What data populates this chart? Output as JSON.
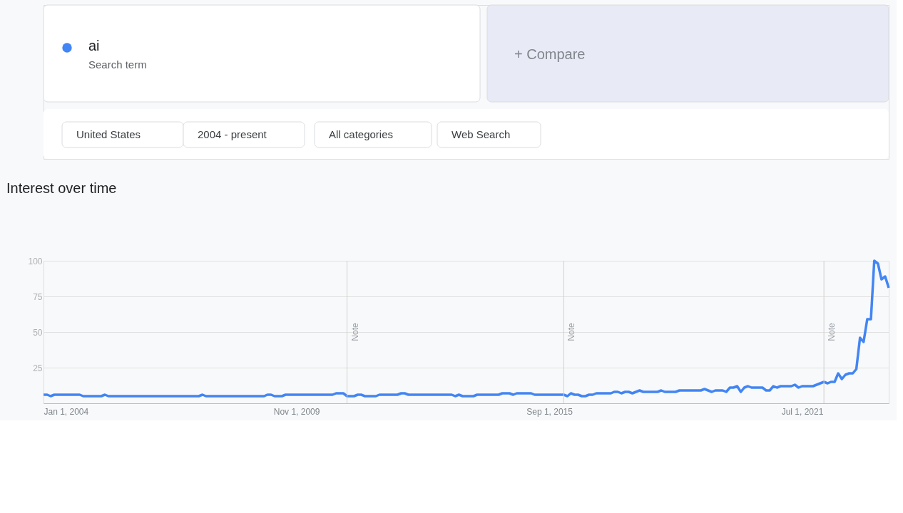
{
  "chart_data": {
    "type": "line",
    "title": "Interest over time",
    "annotations": [
      "Search term",
      "+ Compare",
      "United States",
      "2004 - present",
      "All categories",
      "Web Search"
    ],
    "legend": "top left",
    "series": [
      {
        "name": "ai",
        "color": "#4285f4",
        "x": [
          "2004-01",
          "2004-02",
          "2004-03",
          "2004-04",
          "2004-11",
          "2004-12",
          "2005-05",
          "2005-06",
          "2005-07",
          "2007-08",
          "2007-09",
          "2007-10",
          "2009-02",
          "2009-03",
          "2009-04",
          "2009-05",
          "2009-07",
          "2009-08",
          "2010-09",
          "2010-10",
          "2010-12",
          "2011-01",
          "2011-03",
          "2011-04",
          "2011-05",
          "2011-06",
          "2011-09",
          "2011-10",
          "2012-03",
          "2012-04",
          "2012-05",
          "2012-06",
          "2013-06",
          "2013-07",
          "2013-08",
          "2013-09",
          "2013-12",
          "2014-01",
          "2014-07",
          "2014-08",
          "2014-10",
          "2014-11",
          "2014-12",
          "2015-04",
          "2015-05",
          "2016-01",
          "2016-02",
          "2016-03",
          "2016-04",
          "2016-05",
          "2016-06",
          "2016-07",
          "2016-08",
          "2016-09",
          "2016-10",
          "2017-02",
          "2017-03",
          "2017-04",
          "2017-05",
          "2017-06",
          "2017-07",
          "2017-08",
          "2017-10",
          "2017-11",
          "2018-03",
          "2018-04",
          "2018-05",
          "2018-08",
          "2018-09",
          "2019-03",
          "2019-04",
          "2019-06",
          "2019-07",
          "2019-09",
          "2019-10",
          "2019-11",
          "2019-12",
          "2020-01",
          "2020-02",
          "2020-03",
          "2020-04",
          "2020-05",
          "2020-08",
          "2020-09",
          "2020-10",
          "2020-11",
          "2020-12",
          "2021-01",
          "2021-04",
          "2021-05",
          "2021-06",
          "2021-07",
          "2021-10",
          "2021-12",
          "2022-01",
          "2022-02",
          "2022-03",
          "2022-04",
          "2022-05",
          "2022-06",
          "2022-07",
          "2022-08",
          "2022-09",
          "2022-10",
          "2022-11",
          "2022-12",
          "2023-01",
          "2023-02",
          "2023-03",
          "2023-04",
          "2023-05",
          "2023-06",
          "2023-07"
        ],
        "values": [
          6,
          6,
          5,
          6,
          6,
          5,
          5,
          6,
          5,
          5,
          6,
          5,
          5,
          6,
          6,
          5,
          5,
          6,
          6,
          7,
          7,
          5,
          5,
          6,
          6,
          5,
          5,
          6,
          6,
          7,
          7,
          6,
          6,
          5,
          6,
          5,
          5,
          6,
          6,
          7,
          7,
          6,
          7,
          7,
          6,
          6,
          5,
          7,
          6,
          6,
          5,
          5,
          6,
          6,
          7,
          7,
          8,
          8,
          7,
          8,
          8,
          7,
          9,
          8,
          8,
          9,
          8,
          8,
          9,
          9,
          10,
          8,
          9,
          9,
          8,
          11,
          11,
          12,
          8,
          11,
          12,
          11,
          11,
          9,
          9,
          12,
          11,
          12,
          12,
          13,
          11,
          12,
          12,
          14,
          15,
          14,
          15,
          15,
          21,
          17,
          20,
          21,
          21,
          24,
          46,
          43,
          59,
          59,
          100,
          98,
          87,
          89,
          81
        ]
      }
    ],
    "xlim": [
      "2004-01",
      "2023-07"
    ],
    "xticks": [
      {
        "value": "2004-01-01",
        "label": "Jan 1, 2004"
      },
      {
        "value": "2009-11-01",
        "label": "Nov 1, 2009"
      },
      {
        "value": "2015-09-01",
        "label": "Sep 1, 2015"
      },
      {
        "value": "2021-07-01",
        "label": "Jul 1, 2021"
      }
    ],
    "ylim": [
      0,
      100
    ],
    "yticks": [
      25,
      50,
      75,
      100
    ],
    "grid": "y",
    "ref_lines": [
      {
        "axis": "x",
        "value": "2011-01-01",
        "label": "Note",
        "color": "#d0d0d0"
      },
      {
        "axis": "x",
        "value": "2016-01-01",
        "label": "Note",
        "color": "#d0d0d0"
      },
      {
        "axis": "x",
        "value": "2022-01-01",
        "label": "Note",
        "color": "#d0d0d0"
      }
    ],
    "line_style": "solid",
    "marker": "none"
  }
}
